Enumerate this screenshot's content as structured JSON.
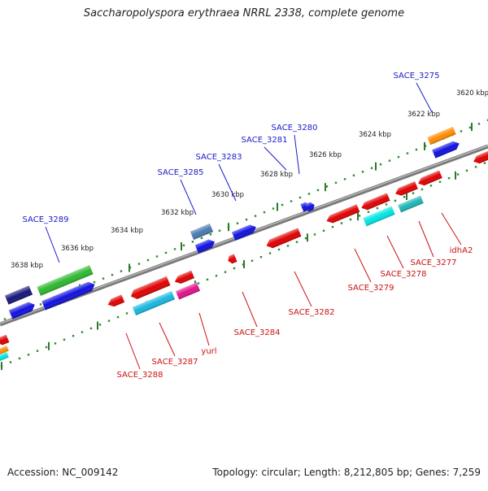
{
  "title": "Saccharopolyspora erythraea NRRL 2338, complete genome",
  "footer": {
    "accession": "Accession: NC_009142",
    "summary": "Topology: circular; Length: 8,212,805 bp; Genes: 7,259"
  },
  "colors": {
    "backbone": "#7a7a7a",
    "ruler_dot": "#2e8b2e",
    "forward_label": "#1a1acc",
    "reverse_label": "#cc1111"
  },
  "ruler_ticks": [
    "3620 kbp",
    "3622 kbp",
    "3624 kbp",
    "3626 kbp",
    "3628 kbp",
    "3630 kbp",
    "3632 kbp",
    "3634 kbp",
    "3636 kbp",
    "3638 kbp"
  ],
  "forward_genes": [
    "SACE_3275",
    "SACE_3280",
    "SACE_3281",
    "SACE_3283",
    "SACE_3285",
    "SACE_3289"
  ],
  "reverse_genes": [
    "idhA2",
    "SACE_3277",
    "SACE_3278",
    "SACE_3279",
    "SACE_3282",
    "SACE_3284",
    "yurl",
    "SACE_3287",
    "SACE_3288"
  ]
}
